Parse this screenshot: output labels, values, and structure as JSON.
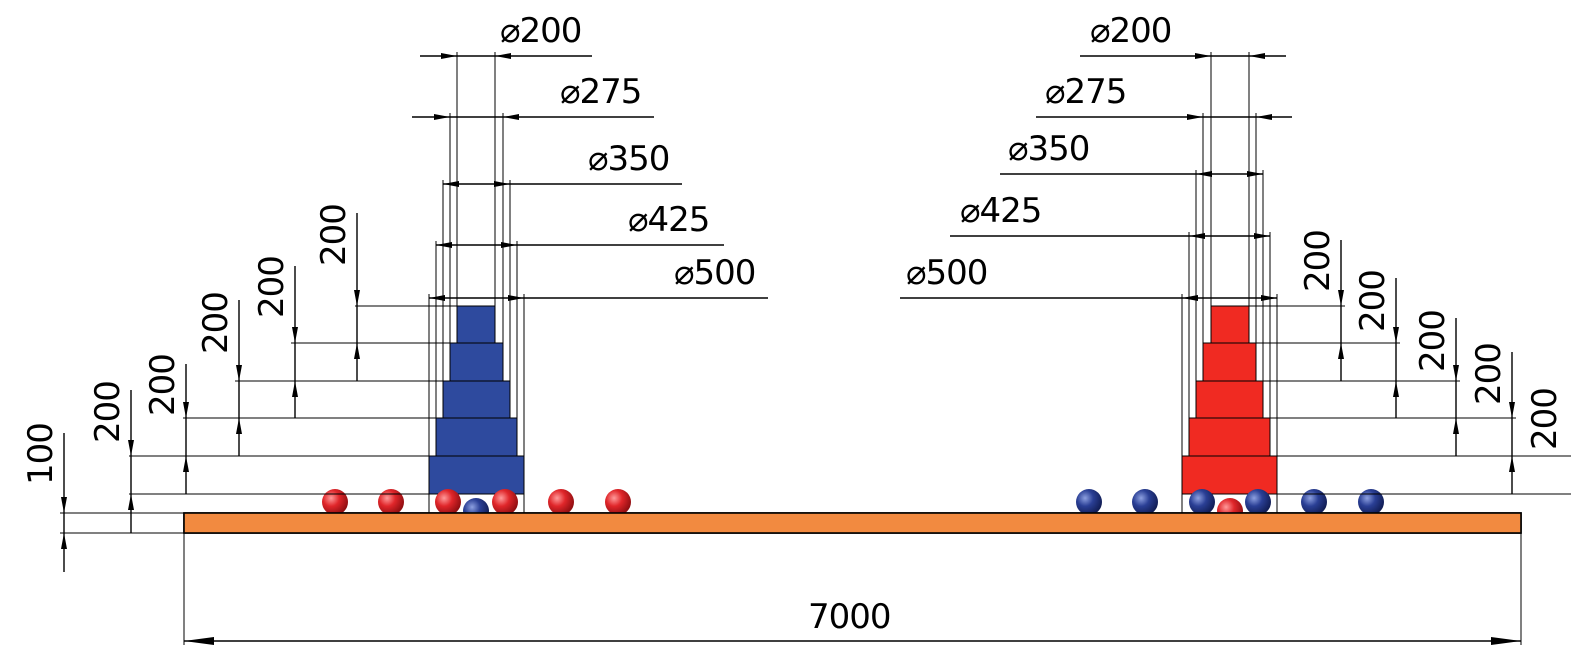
{
  "drawing": {
    "base_length_label": "7000",
    "base_thickness_label": "100",
    "diameter_symbol": "⌀",
    "colors": {
      "base_fill": "#f28a40",
      "left_tower": "#2e4a9e",
      "right_tower": "#f02a22",
      "red_ball": "#e0262a",
      "blue_ball": "#2a3f95",
      "line": "#000000"
    }
  },
  "left_tower": {
    "tier_height_labels": [
      "200",
      "200",
      "200",
      "200",
      "200"
    ],
    "diameter_labels": [
      "200",
      "275",
      "350",
      "425",
      "500"
    ]
  },
  "right_tower": {
    "tier_height_labels": [
      "200",
      "200",
      "200",
      "200",
      "200"
    ],
    "diameter_labels": [
      "200",
      "275",
      "350",
      "425",
      "500"
    ]
  }
}
